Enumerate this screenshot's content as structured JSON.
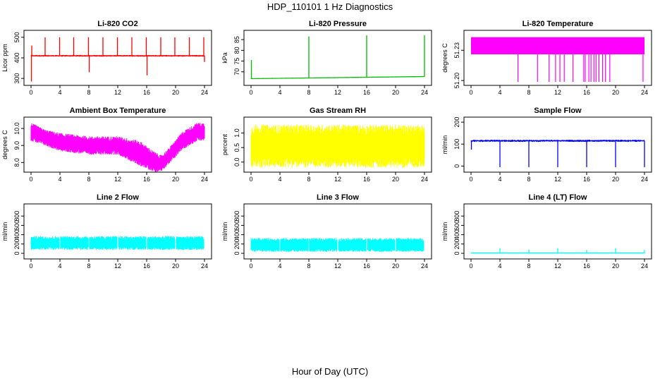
{
  "title": "HDP_110101  1 Hz Diagnostics",
  "xlabel": "Hour of Day (UTC)",
  "chart_data": [
    {
      "type": "line",
      "title": "Li-820 CO2",
      "ylabel": "Licor ppm",
      "color": "#ff0000",
      "xlim": [
        0,
        24
      ],
      "ylim": [
        280,
        520
      ],
      "x_ticks": [
        "0",
        "4",
        "8",
        "12",
        "16",
        "20",
        "24"
      ],
      "y_ticks": [
        300,
        400,
        500
      ],
      "series": [
        {
          "name": "co2",
          "baseline": 410,
          "spread": 8,
          "noise": 4,
          "events": [
            {
              "x": 0.05,
              "y": 285
            },
            {
              "x": 0.1,
              "y": 460
            },
            {
              "x": 1.95,
              "y": 500
            },
            {
              "x": 3.95,
              "y": 500
            },
            {
              "x": 5.9,
              "y": 500
            },
            {
              "x": 7.95,
              "y": 500
            },
            {
              "x": 8.05,
              "y": 330
            },
            {
              "x": 9.95,
              "y": 500
            },
            {
              "x": 11.95,
              "y": 500
            },
            {
              "x": 13.95,
              "y": 500
            },
            {
              "x": 15.95,
              "y": 500
            },
            {
              "x": 16.05,
              "y": 315
            },
            {
              "x": 17.95,
              "y": 500
            },
            {
              "x": 19.9,
              "y": 500
            },
            {
              "x": 21.9,
              "y": 500
            },
            {
              "x": 23.9,
              "y": 500
            },
            {
              "x": 24,
              "y": 380
            }
          ]
        }
      ]
    },
    {
      "type": "line",
      "title": "Li-820 Pressure",
      "ylabel": "kPa",
      "color": "#00bb00",
      "xlim": [
        0,
        24
      ],
      "ylim": [
        65,
        88
      ],
      "x_ticks": [
        "0",
        "4",
        "8",
        "12",
        "16",
        "20",
        "24"
      ],
      "y_ticks": [
        70,
        75,
        80,
        85
      ],
      "series": [
        {
          "name": "pressure",
          "start": 66.8,
          "end": 67.8,
          "spread": 0.4,
          "noise": 0.1,
          "events": [
            {
              "x": 0.05,
              "y": 75.5
            },
            {
              "x": 8.0,
              "y": 86.5
            },
            {
              "x": 16.0,
              "y": 87.0
            },
            {
              "x": 24.0,
              "y": 87.0
            }
          ]
        }
      ]
    },
    {
      "type": "line",
      "title": "Li-820 Temperature",
      "ylabel": "degrees C",
      "color": "#ff00ff",
      "xlim": [
        0,
        24
      ],
      "ylim": [
        51.198,
        51.247
      ],
      "x_ticks": [
        "0",
        "4",
        "8",
        "12",
        "16",
        "20",
        "24"
      ],
      "y_ticks": [
        "51.20",
        "51.23"
      ],
      "series": [
        {
          "name": "temperature",
          "high": 51.243,
          "low": 51.226,
          "drop_hours": [
            6.5,
            9.2,
            10.8,
            11.7,
            12.3,
            12.9,
            14.1,
            15.6,
            15.8,
            16.3,
            16.6,
            17.0,
            17.3,
            17.7,
            18.2,
            18.6,
            19.2,
            23.8
          ]
        }
      ]
    },
    {
      "type": "area",
      "title": "Ambient Box Temperature",
      "ylabel": "degrees C",
      "color": "#ff00ff",
      "xlim": [
        0,
        24
      ],
      "ylim": [
        7.6,
        10.5
      ],
      "x_ticks": [
        "0",
        "4",
        "8",
        "12",
        "16",
        "20",
        "24"
      ],
      "y_ticks": [
        "8.0",
        "9.0",
        "10.0"
      ],
      "series": [
        {
          "name": "ambient",
          "upper": [
            [
              0,
              10.2
            ],
            [
              2,
              9.8
            ],
            [
              4,
              9.6
            ],
            [
              8,
              9.4
            ],
            [
              12,
              9.4
            ],
            [
              15,
              9.1
            ],
            [
              17,
              8.5
            ],
            [
              18,
              8.3
            ],
            [
              19,
              8.7
            ],
            [
              21,
              9.7
            ],
            [
              23,
              10.2
            ],
            [
              24,
              10.2
            ]
          ],
          "lower": [
            [
              0,
              9.4
            ],
            [
              2,
              9.1
            ],
            [
              4,
              8.8
            ],
            [
              8,
              8.6
            ],
            [
              12,
              8.6
            ],
            [
              15,
              8.0
            ],
            [
              17,
              7.6
            ],
            [
              18,
              7.6
            ],
            [
              19,
              8.0
            ],
            [
              21,
              8.9
            ],
            [
              23,
              9.4
            ],
            [
              24,
              9.4
            ]
          ]
        }
      ]
    },
    {
      "type": "area",
      "title": "Gas Stream RH",
      "ylabel": "percent",
      "color": "#ffff00",
      "xlim": [
        0,
        24
      ],
      "ylim": [
        -0.25,
        1.45
      ],
      "x_ticks": [
        "0",
        "4",
        "8",
        "12",
        "16",
        "20",
        "24"
      ],
      "y_ticks": [
        "0.0",
        "0.5",
        "1.0"
      ],
      "series": [
        {
          "name": "rh",
          "upper": [
            [
              0,
              1.1
            ],
            [
              24,
              1.1
            ]
          ],
          "lower": [
            [
              0,
              0.0
            ],
            [
              24,
              0.0
            ]
          ]
        }
      ]
    },
    {
      "type": "line",
      "title": "Sample Flow",
      "ylabel": "ml/min",
      "color": "#0000ff",
      "xlim": [
        0,
        24
      ],
      "ylim": [
        -15,
        210
      ],
      "x_ticks": [
        "0",
        "4",
        "8",
        "12",
        "16",
        "20",
        "24"
      ],
      "y_ticks": [
        0,
        100,
        200
      ],
      "series": [
        {
          "name": "sample_flow",
          "baseline": 115,
          "spread": 10,
          "noise": 3,
          "events": [
            {
              "x": 0.05,
              "y": 75
            },
            {
              "x": 4.0,
              "y": -5
            },
            {
              "x": 8.0,
              "y": -5
            },
            {
              "x": 12.0,
              "y": -5
            },
            {
              "x": 16.0,
              "y": -5
            },
            {
              "x": 20.0,
              "y": -5
            },
            {
              "x": 24.0,
              "y": -5
            }
          ]
        }
      ]
    },
    {
      "type": "area",
      "title": "Line 2 Flow",
      "ylabel": "ml/min",
      "color": "#00ffff",
      "xlim": [
        0,
        24
      ],
      "ylim": [
        -60,
        1000
      ],
      "x_ticks": [
        "0",
        "4",
        "8",
        "12",
        "16",
        "20",
        "24"
      ],
      "y_ticks": [
        0,
        200,
        400,
        600,
        800
      ],
      "series": [
        {
          "name": "line2",
          "upper": [
            [
              0,
              330
            ],
            [
              24,
              330
            ]
          ],
          "lower": [
            [
              0,
              110
            ],
            [
              24,
              110
            ]
          ],
          "gaps": [
            4.0,
            8.0,
            12.0,
            16.0,
            20.0,
            24.0
          ]
        }
      ]
    },
    {
      "type": "area",
      "title": "Line 3 Flow",
      "ylabel": "ml/min",
      "color": "#00ffff",
      "xlim": [
        0,
        24
      ],
      "ylim": [
        -60,
        1000
      ],
      "x_ticks": [
        "0",
        "4",
        "8",
        "12",
        "16",
        "20",
        "24"
      ],
      "y_ticks": [
        0,
        200,
        400,
        600,
        800
      ],
      "series": [
        {
          "name": "line3",
          "upper": [
            [
              0,
              290
            ],
            [
              24,
              290
            ]
          ],
          "lower": [
            [
              0,
              70
            ],
            [
              24,
              70
            ]
          ],
          "gaps": [
            4.0,
            8.0,
            12.0,
            16.0,
            20.0,
            24.0
          ]
        }
      ]
    },
    {
      "type": "line",
      "title": "Line 4 (LT) Flow",
      "ylabel": "ml/min",
      "color": "#00ffff",
      "xlim": [
        0,
        24
      ],
      "ylim": [
        -60,
        1000
      ],
      "x_ticks": [
        "0",
        "4",
        "8",
        "12",
        "16",
        "20",
        "24"
      ],
      "y_ticks": [
        0,
        200,
        400,
        600,
        800
      ],
      "series": [
        {
          "name": "line4",
          "baseline": 8,
          "spread": 4,
          "noise": 2,
          "events": [
            {
              "x": 4.0,
              "y": 110
            },
            {
              "x": 8.0,
              "y": 80
            },
            {
              "x": 12.0,
              "y": 110
            },
            {
              "x": 16.0,
              "y": 70
            },
            {
              "x": 20.0,
              "y": 110
            },
            {
              "x": 24.0,
              "y": 70
            }
          ]
        }
      ]
    }
  ]
}
